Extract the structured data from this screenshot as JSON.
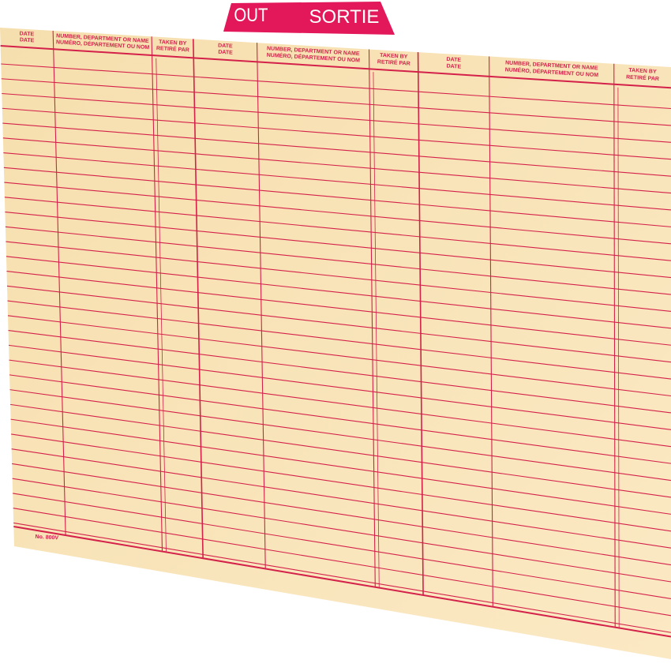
{
  "tab": {
    "left": "OUT",
    "right": "SORTIE"
  },
  "header_groups": [
    {
      "date": [
        "DATE",
        "DATE"
      ],
      "number": [
        "NUMBER, DEPARTMENT OR NAME",
        "NUMÉRO, DÉPARTEMENT OU NOM"
      ],
      "taken_by": [
        "TAKEN BY",
        "RETIRÉ PAR"
      ]
    },
    {
      "date": [
        "DATE",
        "DATE"
      ],
      "number": [
        "NUMBER, DEPARTMENT OR NAME",
        "NUMÉRO, DÉPARTEMENT OU NOM"
      ],
      "taken_by": [
        "TAKEN BY",
        "RETIRÉ PAR"
      ]
    },
    {
      "date": [
        "DATE",
        "DATE"
      ],
      "number": [
        "NUMBER, DEPARTMENT OR NAME",
        "NUMÉRO, DÉPARTEMENT OU NOM"
      ],
      "taken_by": [
        "TAKEN BY",
        "RETIRÉ PAR"
      ]
    }
  ],
  "footer": "No. 800V"
}
